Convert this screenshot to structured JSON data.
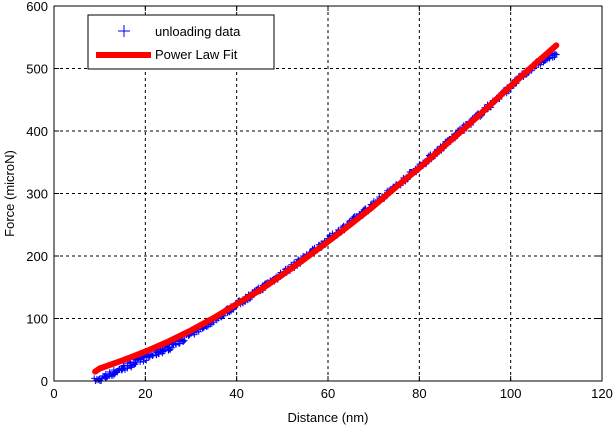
{
  "chart_data": {
    "type": "scatter",
    "xlabel": "Distance (nm)",
    "ylabel": "Force (microN)",
    "xlim": [
      0,
      120
    ],
    "ylim": [
      0,
      600
    ],
    "xticks": [
      0,
      20,
      40,
      60,
      80,
      100,
      120
    ],
    "yticks": [
      0,
      100,
      200,
      300,
      400,
      500,
      600
    ],
    "grid": true,
    "legend_position": "top-left",
    "series": [
      {
        "name": "unloading data",
        "kind": "scatter",
        "marker": "+",
        "color": "#0000ff",
        "x_range": [
          9,
          110
        ],
        "points": [
          [
            9,
            0
          ],
          [
            10,
            2
          ],
          [
            11,
            6
          ],
          [
            12,
            10
          ],
          [
            13,
            13
          ],
          [
            14,
            17
          ],
          [
            15,
            20
          ],
          [
            17,
            27
          ],
          [
            20,
            37
          ],
          [
            25,
            53
          ],
          [
            30,
            75
          ],
          [
            35,
            98
          ],
          [
            40,
            122
          ],
          [
            45,
            146
          ],
          [
            50,
            172
          ],
          [
            55,
            198
          ],
          [
            60,
            226
          ],
          [
            65,
            254
          ],
          [
            70,
            283
          ],
          [
            75,
            312
          ],
          [
            80,
            343
          ],
          [
            85,
            374
          ],
          [
            90,
            406
          ],
          [
            95,
            438
          ],
          [
            100,
            471
          ],
          [
            105,
            504
          ],
          [
            110,
            525
          ]
        ]
      },
      {
        "name": "Power Law Fit",
        "kind": "line",
        "color": "#ff0000",
        "points": [
          [
            9,
            15
          ],
          [
            10,
            20
          ],
          [
            15,
            33
          ],
          [
            20,
            47
          ],
          [
            25,
            63
          ],
          [
            30,
            81
          ],
          [
            35,
            101
          ],
          [
            40,
            123
          ],
          [
            45,
            145
          ],
          [
            50,
            170
          ],
          [
            55,
            196
          ],
          [
            60,
            223
          ],
          [
            65,
            251
          ],
          [
            70,
            280
          ],
          [
            75,
            311
          ],
          [
            80,
            341
          ],
          [
            85,
            373
          ],
          [
            90,
            405
          ],
          [
            95,
            438
          ],
          [
            100,
            472
          ],
          [
            105,
            505
          ],
          [
            110,
            537
          ]
        ]
      }
    ]
  }
}
